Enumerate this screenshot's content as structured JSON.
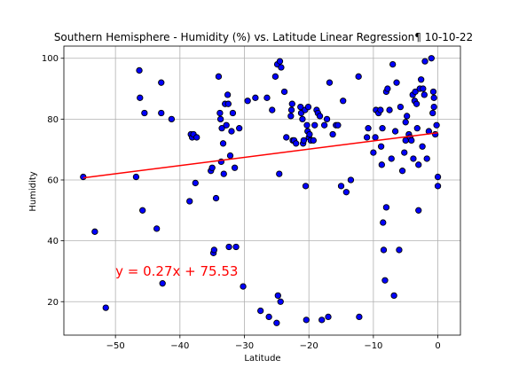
{
  "chart_data": {
    "type": "scatter",
    "title": "Southern Hemisphere - Humidity (%) vs. Latitude Linear Regression¶ 10-10-22",
    "xlabel": "Latitude",
    "ylabel": "Humidity",
    "xlim": [
      -58,
      3.5
    ],
    "ylim": [
      9,
      104
    ],
    "xticks": [
      -50,
      -40,
      -30,
      -20,
      -10,
      0
    ],
    "yticks": [
      20,
      40,
      60,
      80,
      100
    ],
    "grid": true,
    "marker_face": "#0000ff",
    "marker_edge": "#000000",
    "line_color": "#ff0000",
    "equation_color": "#ff0000",
    "regression": {
      "slope": 0.27,
      "intercept": 75.53,
      "x_range": [
        -55,
        0
      ]
    },
    "equation_text": "y = 0.27x + 75.53",
    "equation_position": [
      -50,
      30
    ],
    "points": [
      [
        -55,
        61
      ],
      [
        -53.2,
        43
      ],
      [
        -51.5,
        18
      ],
      [
        -46.8,
        61
      ],
      [
        -46.3,
        96
      ],
      [
        -46.2,
        87
      ],
      [
        -45.8,
        50
      ],
      [
        -45.5,
        82
      ],
      [
        -43.6,
        44
      ],
      [
        -42.9,
        92
      ],
      [
        -42.9,
        82
      ],
      [
        -42.7,
        26
      ],
      [
        -41.3,
        80
      ],
      [
        -38.5,
        53
      ],
      [
        -38.3,
        75
      ],
      [
        -38.1,
        74
      ],
      [
        -37.9,
        75
      ],
      [
        -37.6,
        59
      ],
      [
        -37.4,
        74
      ],
      [
        -35.2,
        63
      ],
      [
        -35.0,
        64
      ],
      [
        -34.8,
        36
      ],
      [
        -34.7,
        37
      ],
      [
        -34.4,
        54
      ],
      [
        -34.0,
        94
      ],
      [
        -33.8,
        82
      ],
      [
        -33.7,
        80
      ],
      [
        -33.6,
        66
      ],
      [
        -33.5,
        77
      ],
      [
        -33.3,
        72
      ],
      [
        -33.2,
        62
      ],
      [
        -33.0,
        85
      ],
      [
        -32.8,
        78
      ],
      [
        -32.6,
        88
      ],
      [
        -32.5,
        85
      ],
      [
        -32.4,
        38
      ],
      [
        -32.2,
        68
      ],
      [
        -32.0,
        76
      ],
      [
        -31.8,
        82
      ],
      [
        -31.5,
        64
      ],
      [
        -31.3,
        38
      ],
      [
        -30.8,
        77
      ],
      [
        -30.2,
        25
      ],
      [
        -29.5,
        86
      ],
      [
        -28.3,
        87
      ],
      [
        -27.5,
        17
      ],
      [
        -26.5,
        87
      ],
      [
        -26.2,
        15
      ],
      [
        -25.7,
        83
      ],
      [
        -25.2,
        94
      ],
      [
        -25.0,
        13
      ],
      [
        -24.9,
        98
      ],
      [
        -24.8,
        22
      ],
      [
        -24.6,
        62
      ],
      [
        -24.5,
        99
      ],
      [
        -24.4,
        20
      ],
      [
        -24.3,
        97
      ],
      [
        -23.8,
        89
      ],
      [
        -23.5,
        74
      ],
      [
        -22.8,
        81
      ],
      [
        -22.7,
        83
      ],
      [
        -22.6,
        85
      ],
      [
        -22.5,
        73
      ],
      [
        -22.3,
        73
      ],
      [
        -22.0,
        72
      ],
      [
        -21.3,
        84
      ],
      [
        -21.2,
        82
      ],
      [
        -21.0,
        80
      ],
      [
        -20.9,
        72
      ],
      [
        -20.8,
        73
      ],
      [
        -20.6,
        83
      ],
      [
        -20.5,
        58
      ],
      [
        -20.4,
        14
      ],
      [
        -20.3,
        78
      ],
      [
        -20.2,
        76
      ],
      [
        -20.1,
        84
      ],
      [
        -20.0,
        74
      ],
      [
        -19.9,
        75
      ],
      [
        -19.7,
        73
      ],
      [
        -19.3,
        73
      ],
      [
        -19.1,
        78
      ],
      [
        -18.8,
        83
      ],
      [
        -18.6,
        82
      ],
      [
        -18.3,
        81
      ],
      [
        -18.0,
        14
      ],
      [
        -17.6,
        78
      ],
      [
        -17.2,
        80
      ],
      [
        -17.0,
        15
      ],
      [
        -16.8,
        92
      ],
      [
        -16.3,
        75
      ],
      [
        -15.8,
        78
      ],
      [
        -15.5,
        78
      ],
      [
        -15.0,
        58
      ],
      [
        -14.7,
        86
      ],
      [
        -14.2,
        56
      ],
      [
        -13.5,
        60
      ],
      [
        -12.3,
        94
      ],
      [
        -12.2,
        15
      ],
      [
        -11.0,
        74
      ],
      [
        -10.8,
        77
      ],
      [
        -10.0,
        69
      ],
      [
        -9.7,
        74
      ],
      [
        -9.6,
        83
      ],
      [
        -9.2,
        82
      ],
      [
        -8.9,
        83
      ],
      [
        -8.8,
        71
      ],
      [
        -8.7,
        65
      ],
      [
        -8.6,
        77
      ],
      [
        -8.5,
        46
      ],
      [
        -8.4,
        37
      ],
      [
        -8.2,
        27
      ],
      [
        -8.0,
        51
      ],
      [
        -8.0,
        89
      ],
      [
        -7.8,
        90
      ],
      [
        -7.5,
        83
      ],
      [
        -7.2,
        67
      ],
      [
        -7.0,
        98
      ],
      [
        -6.8,
        22
      ],
      [
        -6.6,
        76
      ],
      [
        -6.4,
        92
      ],
      [
        -6.0,
        37
      ],
      [
        -5.8,
        84
      ],
      [
        -5.5,
        63
      ],
      [
        -5.2,
        69
      ],
      [
        -5.0,
        73
      ],
      [
        -5.0,
        79
      ],
      [
        -4.8,
        81
      ],
      [
        -4.5,
        75
      ],
      [
        -4.3,
        74
      ],
      [
        -4.1,
        73
      ],
      [
        -3.9,
        88
      ],
      [
        -3.8,
        67
      ],
      [
        -3.6,
        86
      ],
      [
        -3.5,
        89
      ],
      [
        -3.3,
        85
      ],
      [
        -3.2,
        77
      ],
      [
        -3.0,
        50
      ],
      [
        -3.0,
        65
      ],
      [
        -2.8,
        90
      ],
      [
        -2.6,
        93
      ],
      [
        -2.4,
        71
      ],
      [
        -2.3,
        90
      ],
      [
        -2.1,
        88
      ],
      [
        -2.0,
        99
      ],
      [
        -1.7,
        67
      ],
      [
        -1.4,
        76
      ],
      [
        -1.0,
        100
      ],
      [
        -0.8,
        82
      ],
      [
        -0.7,
        89
      ],
      [
        -0.6,
        87
      ],
      [
        -0.6,
        84
      ],
      [
        -0.4,
        75
      ],
      [
        -0.2,
        78
      ],
      [
        0.0,
        58
      ],
      [
        0.0,
        61
      ]
    ]
  }
}
